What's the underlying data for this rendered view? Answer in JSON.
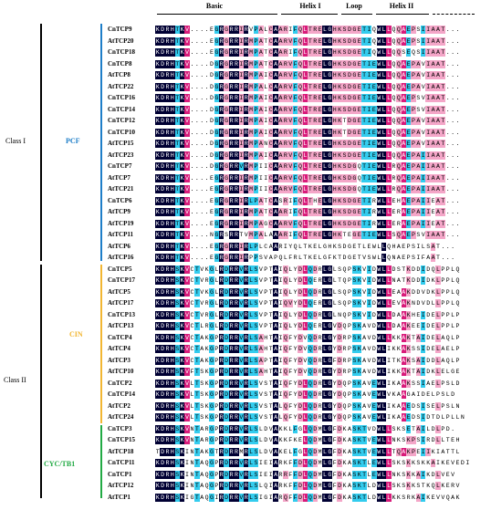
{
  "regions": [
    {
      "label": "Basic"
    },
    {
      "label": "Helix I"
    },
    {
      "label": "Loop"
    },
    {
      "label": "Helix II"
    }
  ],
  "classes": [
    {
      "label": "Class I",
      "groups": [
        {
          "label": "PCF",
          "color": "#1e7ec8"
        }
      ]
    },
    {
      "label": "Class II",
      "groups": [
        {
          "label": "CIN",
          "color": "#f2b632"
        },
        {
          "label": "CYC/TB1",
          "color": "#22aa44"
        }
      ]
    }
  ],
  "sequences": [
    {
      "name": "CnTCP9",
      "seq": "KDRHTKV....EGRGRRIRVPALCAARIFQLTRELGHKSDGETIQWLLQQAEPSIIAAT..."
    },
    {
      "name": "AtTCP20",
      "seq": "KDRHTKV....EGRGRRIRMPATCAARVFQLTRELGHKSDGETIQWLLQQAEPSIIAAT..."
    },
    {
      "name": "CnTCP18",
      "seq": "KDRHTKV....EGRGRRIRMPATCAARIFQLTRELGHKSDGETIQWLLQQSEQSIIAAT..."
    },
    {
      "name": "CnTCP8",
      "seq": "KDRHTKV....DGRGRRIRMPATCAARVFQLTRELGHKSDGETIEWLLQQAEPAVIAAT..."
    },
    {
      "name": "AtTCP8",
      "seq": "KDRHTKV....DGRGRRIRMPAICAARVFQLTRELGHKSDGETIEWLLQQAEPAVIAAT..."
    },
    {
      "name": "AtTCP22",
      "seq": "KDRHTKV....DGRGRRIRMPALCAARVFQLTRELGHKSDGETIEWLLQQAEPAVIAAT..."
    },
    {
      "name": "CnTCP16",
      "seq": "KDRHTKV....DGRGRRIRMPAICAARVFQLTRELGHKSDGETIEWLLQQAEPSVIAAT..."
    },
    {
      "name": "CnTCP14",
      "seq": "KDRHTKV....DGRGRRIRMPAICAARVFQLTRELGHKSDGETIEWLLQQAEPSVIAAT..."
    },
    {
      "name": "CnTCP12",
      "seq": "KDRHTKV....DGRGRRIRMPAICAARVFQLTRELGHKTDGETIEWLLQQAEPAVIAAT..."
    },
    {
      "name": "CnTCP10",
      "seq": "KDRHTKV....DGRGRRIRMPAICAARVFQLTRELGHKTDGETIEWLLQQAEPAVIAAT..."
    },
    {
      "name": "AtTCP15",
      "seq": "KDRHTKV....DGRGRRIRMPANCAARVFQLTRELGHKSDGETIEWLLQQAEPAVIAAT..."
    },
    {
      "name": "AtTCP23",
      "seq": "KDRHTKV....DGRGRRIRMPAICAARVFQLTRELGHKSDGETIEWLLQQAEPAIIAAT..."
    },
    {
      "name": "CnTCP7",
      "seq": "KDRHTKV....DGRGRRVRMPIICAARVFQLTRELGHKSDGQTIEWLLRQAEPAIIAAT..."
    },
    {
      "name": "AtTCP7",
      "seq": "KDRHTKV....EGRGRRIRMPIICAARVFQLTRELGHKSDGQTIEWLLRQAEPAIIAAT..."
    },
    {
      "name": "AtTCP21",
      "seq": "KDRHTKV....EGRGRRIRMPIICAARVFQLTRELGHKSDGQTIEWLLRQAEPAIIAAT..."
    },
    {
      "name": "CnTCP6",
      "seq": "KDRHTKV....EGRGRRIRLPATCASRIFQLTHELGHKSDGETIRWLLEHAEPAIIEAT..."
    },
    {
      "name": "AtTCP9",
      "seq": "KDRHTKV....EGRGRRIRMPATCAARIFQLTRELGHKSDGETIRWLLERAEPAIIEAT..."
    },
    {
      "name": "AtTCP19",
      "seq": "KDRHTKV....EGRGRRIRMPAGCAARVFQLTRELGHKSDGETIRWLLERAEPAIIEAT..."
    },
    {
      "name": "AtTCP11",
      "seq": "KDRHTKV....NGRSRRTVMPALAAARIFQLTRELGHKTEGETIEWLLSQAEPSVIAAT..."
    },
    {
      "name": "AtTCP6",
      "seq": "KDRHTKV....EGRGRRIRLPLCAARIYQLTKELGHKSDGETLEWLLQHAEPSILSAT..."
    },
    {
      "name": "AtTCP16",
      "seq": "KDRHTKV....EGRGRRIRPPSVAPQLFRLTKELGFKTDGETVSWLLQNAEPSIFAAT..."
    },
    {
      "name": "CnTCP5",
      "seq": "KDRHSKVCTVKGLRDRRVRLSVPTAIQLYDLQDRLGLSQPSKVIDWLLDSTKDDIDQLPPLQ"
    },
    {
      "name": "CnTCP17",
      "seq": "KDRHSKVCTVRGLRDRRVRLSVPTAIQLYDLQERLGLTQPSKVIDWLLNATKDDIDKLPPLQ"
    },
    {
      "name": "AtTCP5",
      "seq": "KDRHSKVCTVKGLRDRRVRLSVPTAIQLYDLQDRLGLSQPSKVIDWLLEAAKDDVDKLPPLQ"
    },
    {
      "name": "AtTCP17",
      "seq": "KDRHSKVCTVRGLRDRRVRLSVPTAIQVYDLQERLGLSQPSKVIDWLLEVAKNDVDLLPPLQ"
    },
    {
      "name": "CnTCP13",
      "seq": "KDRHSKVCTVRGLRDRRVRLSVPTAIQLYDLQDRLGLNQPSKVIDWLLDAAKHEIDELPPLP"
    },
    {
      "name": "AtTCP13",
      "seq": "KDRHSKVCTLRGLRDRRVRLSVPTAIQLYDLQERLGVDQPSKAVDWLLDAAKEEIDELPPLP"
    },
    {
      "name": "CnTCP4",
      "seq": "KDRHSKVCTAKGPRDRRVRLSAHTAIQFYDVQDRLGYDRPSKAVDWLLKKAKTAIDELAQLP"
    },
    {
      "name": "AtTCP4",
      "seq": "KDRHSKVCTAKGPRDRRVRLSAHTAIQFYDVQDRLGYDRPSKAVDWLIKKAKSSIDELAELP"
    },
    {
      "name": "AtTCP3",
      "seq": "KDRHSKVCTAKGPRDRRVRLSAPTAIQFYDVQDRLGFDRPSKAVDWLITKAKSAIDDLAQLP"
    },
    {
      "name": "AtTCP10",
      "seq": "KDRHSKVFTSKGPRDRRVRLSAHTAIQFYDVQDRLGYDRPSKAVDWLIKKAKTAIDKLELGE"
    },
    {
      "name": "CnTCP2",
      "seq": "KDRHSKVLTSKGPRDRRVRLSVSTAIQFYDLQDRLGYDQPSKAVEWLIKAAKSSIAELPSLD"
    },
    {
      "name": "CnTCP14",
      "seq": "KDRHSKVLTSKGPRDRRVRLSVSTAIQFYDLQDRLGYDQPSKAVEWLVKAAGAIDELPSLD"
    },
    {
      "name": "AtTCP2",
      "seq": "KDRHSKVLTSKGPRDRRVRLSVSTALQFYDLQDRLGYDQPSKAVEWLIKAAEDSISELPSLN"
    },
    {
      "name": "AtTCP24",
      "seq": "KDRHSKVLTSKGPRDRRVRLSVSTALQFYDLQDRLGYDQPSKAVEWLIKAAEDSIDTDLPLLN"
    },
    {
      "name": "CnTCP3",
      "seq": "KDRHSKVNTARGPRDRRVRLSLDVAKKLFGLQDMLGFDKASKTVDWLLSKSETAILDLPD."
    },
    {
      "name": "CnTCP15",
      "seq": "KDRHSKVNTARGPRDRRVRLSLDVAKKFKELQDMLGFDKASKTVEWLLNKSKPSIRDLLTEH"
    },
    {
      "name": "AtTCP18",
      "seq": "TDRHSKINTAKGTRDRRMRLSLDVAKELFGLQDMLGFDKASKTVEWLLTQAKPEIIKIATTL"
    },
    {
      "name": "CnTCP11",
      "seq": "KDRHSKINTAQGPRDRRVRLSIEIARKFFDLQDMLGFDKASKTLEWLLSKSKKSKKAIKEVEDI"
    },
    {
      "name": "CnTCP1",
      "seq": "KDRHSKINTAQGPRDRRVRLSIEIARRFFDLQDMLGFDKASKTLEWLLNKSKKAIKDLVEV"
    },
    {
      "name": "AtTCP12",
      "seq": "KDRHSKINTAQGPRDRRVRLSLQIARKFFDLQDMLGFDKASKTLDWLLSKSKKSTKQLKERV"
    },
    {
      "name": "AtTCP1",
      "seq": "KDRHSKIGTAQGIRDRRVRLSIGIARQFFDLQDMLGFDKASKTLDWLLKKSRKAIKEVVQAK"
    }
  ]
}
